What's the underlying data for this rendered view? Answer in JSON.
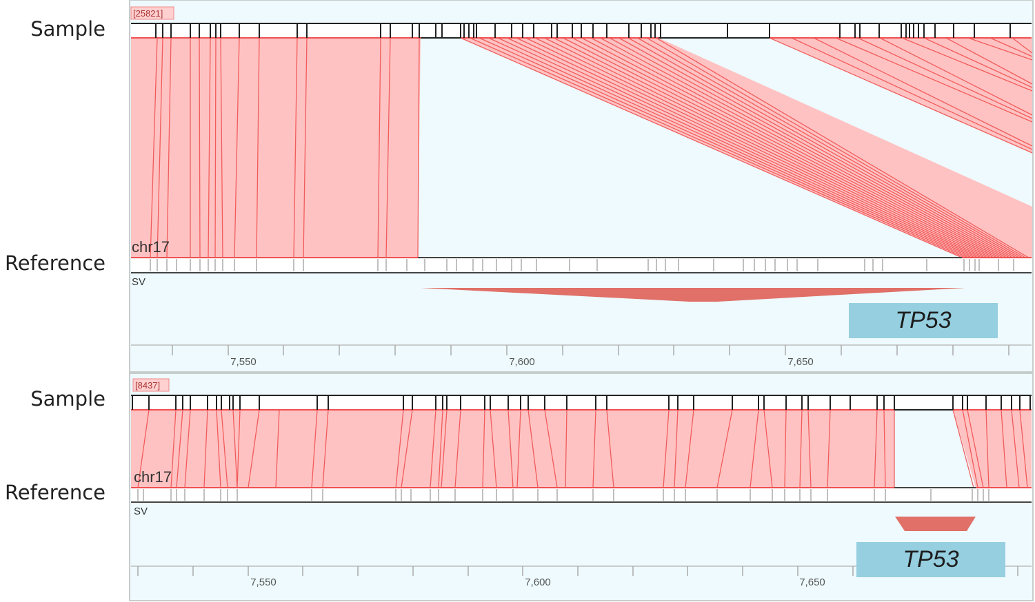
{
  "panels": [
    {
      "sample_label": "Sample",
      "reference_label": "Reference",
      "map_id": "[25821]",
      "chrom": "chr17",
      "sv_label": "SV",
      "gene": "TP53",
      "ticks": [
        "7,550",
        "7,600",
        "7,650"
      ]
    },
    {
      "sample_label": "Sample",
      "reference_label": "Reference",
      "map_id": "[8437]",
      "chrom": "chr17",
      "sv_label": "SV",
      "gene": "TP53",
      "ticks": [
        "7,550",
        "7,600",
        "7,650"
      ]
    }
  ],
  "colors": {
    "panel_bg": "#eefafd",
    "alignment_fill": "#ffc2c2",
    "alignment_line": "#f05050",
    "sv_fill": "#e07068",
    "gene_fill": "#96cfe0",
    "map_line": "#222222"
  }
}
